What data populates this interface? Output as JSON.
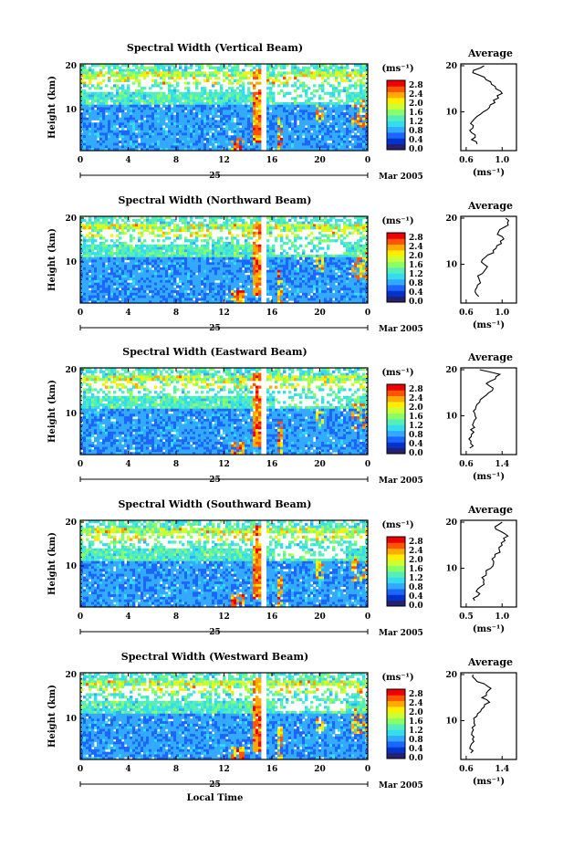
{
  "chart_data": [
    {
      "type": "heatmap",
      "title": "Spectral Width (Vertical Beam)",
      "ylabel": "Height (km)",
      "y_ticks": [
        "20",
        "10"
      ],
      "x_ticks": [
        "0",
        "4",
        "8",
        "12",
        "16",
        "20",
        "0"
      ],
      "date_label": "25",
      "month_year": "Mar 2005",
      "colorbar": {
        "unit": "(ms⁻¹)",
        "ticks": [
          "2.8",
          "2.4",
          "2.0",
          "1.6",
          "1.2",
          "0.8",
          "0.4",
          "0.0"
        ]
      },
      "average": {
        "title": "Average",
        "unit": "(ms⁻¹)",
        "x_ticks": [
          "0.6",
          "1.0"
        ],
        "y_ticks": [
          "20",
          "10"
        ],
        "height_km": [
          3,
          4,
          5,
          6,
          7,
          8,
          9,
          10,
          11,
          12,
          13,
          14,
          15,
          16,
          17,
          18,
          19,
          20
        ],
        "value": [
          0.72,
          0.66,
          0.7,
          0.64,
          0.68,
          0.67,
          0.72,
          0.79,
          0.86,
          0.92,
          0.96,
          1.0,
          0.93,
          0.88,
          0.82,
          0.74,
          0.68,
          0.8
        ]
      }
    },
    {
      "type": "heatmap",
      "title": "Spectral Width (Northward Beam)",
      "ylabel": "Height (km)",
      "y_ticks": [
        "20",
        "10"
      ],
      "x_ticks": [
        "0",
        "4",
        "8",
        "12",
        "16",
        "20",
        "0"
      ],
      "date_label": "25",
      "month_year": "Mar 2005",
      "colorbar": {
        "unit": "(ms⁻¹)",
        "ticks": [
          "2.8",
          "2.4",
          "2.0",
          "1.6",
          "1.2",
          "0.8",
          "0.4",
          "0.0"
        ]
      },
      "average": {
        "title": "Average",
        "unit": "(ms⁻¹)",
        "x_ticks": [
          "0.6",
          "1.0"
        ],
        "y_ticks": [
          "20",
          "10"
        ],
        "height_km": [
          3,
          4,
          5,
          6,
          7,
          8,
          9,
          10,
          11,
          12,
          13,
          14,
          15,
          16,
          17,
          18,
          19,
          20
        ],
        "value": [
          0.74,
          0.7,
          0.72,
          0.76,
          0.74,
          0.78,
          0.82,
          0.8,
          0.78,
          0.84,
          0.9,
          0.94,
          0.98,
          1.0,
          0.96,
          1.02,
          1.06,
          1.04
        ]
      }
    },
    {
      "type": "heatmap",
      "title": "Spectral Width (Eastward Beam)",
      "ylabel": "Height (km)",
      "y_ticks": [
        "20",
        "10"
      ],
      "x_ticks": [
        "0",
        "4",
        "8",
        "12",
        "16",
        "20",
        "0"
      ],
      "date_label": "25",
      "month_year": "Mar 2005",
      "colorbar": {
        "unit": "(ms⁻¹)",
        "ticks": [
          "2.8",
          "2.4",
          "2.0",
          "1.6",
          "1.2",
          "0.8",
          "0.4",
          "0.0"
        ]
      },
      "average": {
        "title": "Average",
        "unit": "(ms⁻¹)",
        "x_ticks": [
          "0.6",
          "1.4"
        ],
        "y_ticks": [
          "20",
          "10"
        ],
        "height_km": [
          3,
          4,
          5,
          6,
          7,
          8,
          9,
          10,
          11,
          12,
          13,
          14,
          15,
          16,
          17,
          18,
          19,
          20
        ],
        "value": [
          0.68,
          0.7,
          0.66,
          0.72,
          0.7,
          0.74,
          0.78,
          0.8,
          0.76,
          0.82,
          0.9,
          0.98,
          1.1,
          1.2,
          1.05,
          1.25,
          1.35,
          0.9
        ]
      }
    },
    {
      "type": "heatmap",
      "title": "Spectral Width (Southward Beam)",
      "ylabel": "Height (km)",
      "y_ticks": [
        "20",
        "10"
      ],
      "x_ticks": [
        "0",
        "4",
        "8",
        "12",
        "16",
        "20",
        "0"
      ],
      "date_label": "25",
      "month_year": "Mar 2005",
      "colorbar": {
        "unit": "(ms⁻¹)",
        "ticks": [
          "2.8",
          "2.4",
          "2.0",
          "1.6",
          "1.2",
          "0.8",
          "0.4",
          "0.0"
        ]
      },
      "average": {
        "title": "Average",
        "unit": "(ms⁻¹)",
        "x_ticks": [
          "0.5",
          "1.0"
        ],
        "y_ticks": [
          "20",
          "10"
        ],
        "height_km": [
          3,
          4,
          5,
          6,
          7,
          8,
          9,
          10,
          11,
          12,
          13,
          14,
          15,
          16,
          17,
          18,
          19,
          20
        ],
        "value": [
          0.62,
          0.66,
          0.64,
          0.7,
          0.74,
          0.72,
          0.78,
          0.84,
          0.88,
          0.86,
          0.9,
          0.96,
          1.0,
          1.04,
          1.08,
          0.98,
          0.9,
          1.0
        ]
      }
    },
    {
      "type": "heatmap",
      "title": "Spectral Width (Westward Beam)",
      "ylabel": "Height (km)",
      "y_ticks": [
        "20",
        "10"
      ],
      "x_ticks": [
        "0",
        "4",
        "8",
        "12",
        "16",
        "20",
        "0"
      ],
      "date_label": "25",
      "month_year": "Mar 2005",
      "xlabel": "Local Time",
      "colorbar": {
        "unit": "(ms⁻¹)",
        "ticks": [
          "2.8",
          "2.4",
          "2.0",
          "1.6",
          "1.2",
          "0.8",
          "0.4",
          "0.0"
        ]
      },
      "average": {
        "title": "Average",
        "unit": "(ms⁻¹)",
        "x_ticks": [
          "0.6",
          "1.4"
        ],
        "y_ticks": [
          "20",
          "10"
        ],
        "height_km": [
          3,
          4,
          5,
          6,
          7,
          8,
          9,
          10,
          11,
          12,
          13,
          14,
          15,
          16,
          17,
          18,
          19,
          20
        ],
        "value": [
          0.7,
          0.68,
          0.72,
          0.74,
          0.72,
          0.76,
          0.8,
          0.78,
          0.84,
          0.92,
          1.0,
          1.12,
          0.95,
          1.05,
          1.15,
          1.0,
          0.8,
          0.75
        ]
      }
    }
  ],
  "colors": {
    "colormap": [
      "#26206e",
      "#0033cc",
      "#1a66ff",
      "#33aaff",
      "#33ddee",
      "#55eebb",
      "#88ff66",
      "#ccff33",
      "#ffee00",
      "#ffaa00",
      "#ff5500",
      "#ee0000"
    ],
    "line": "#000000",
    "background": "#ffffff"
  }
}
